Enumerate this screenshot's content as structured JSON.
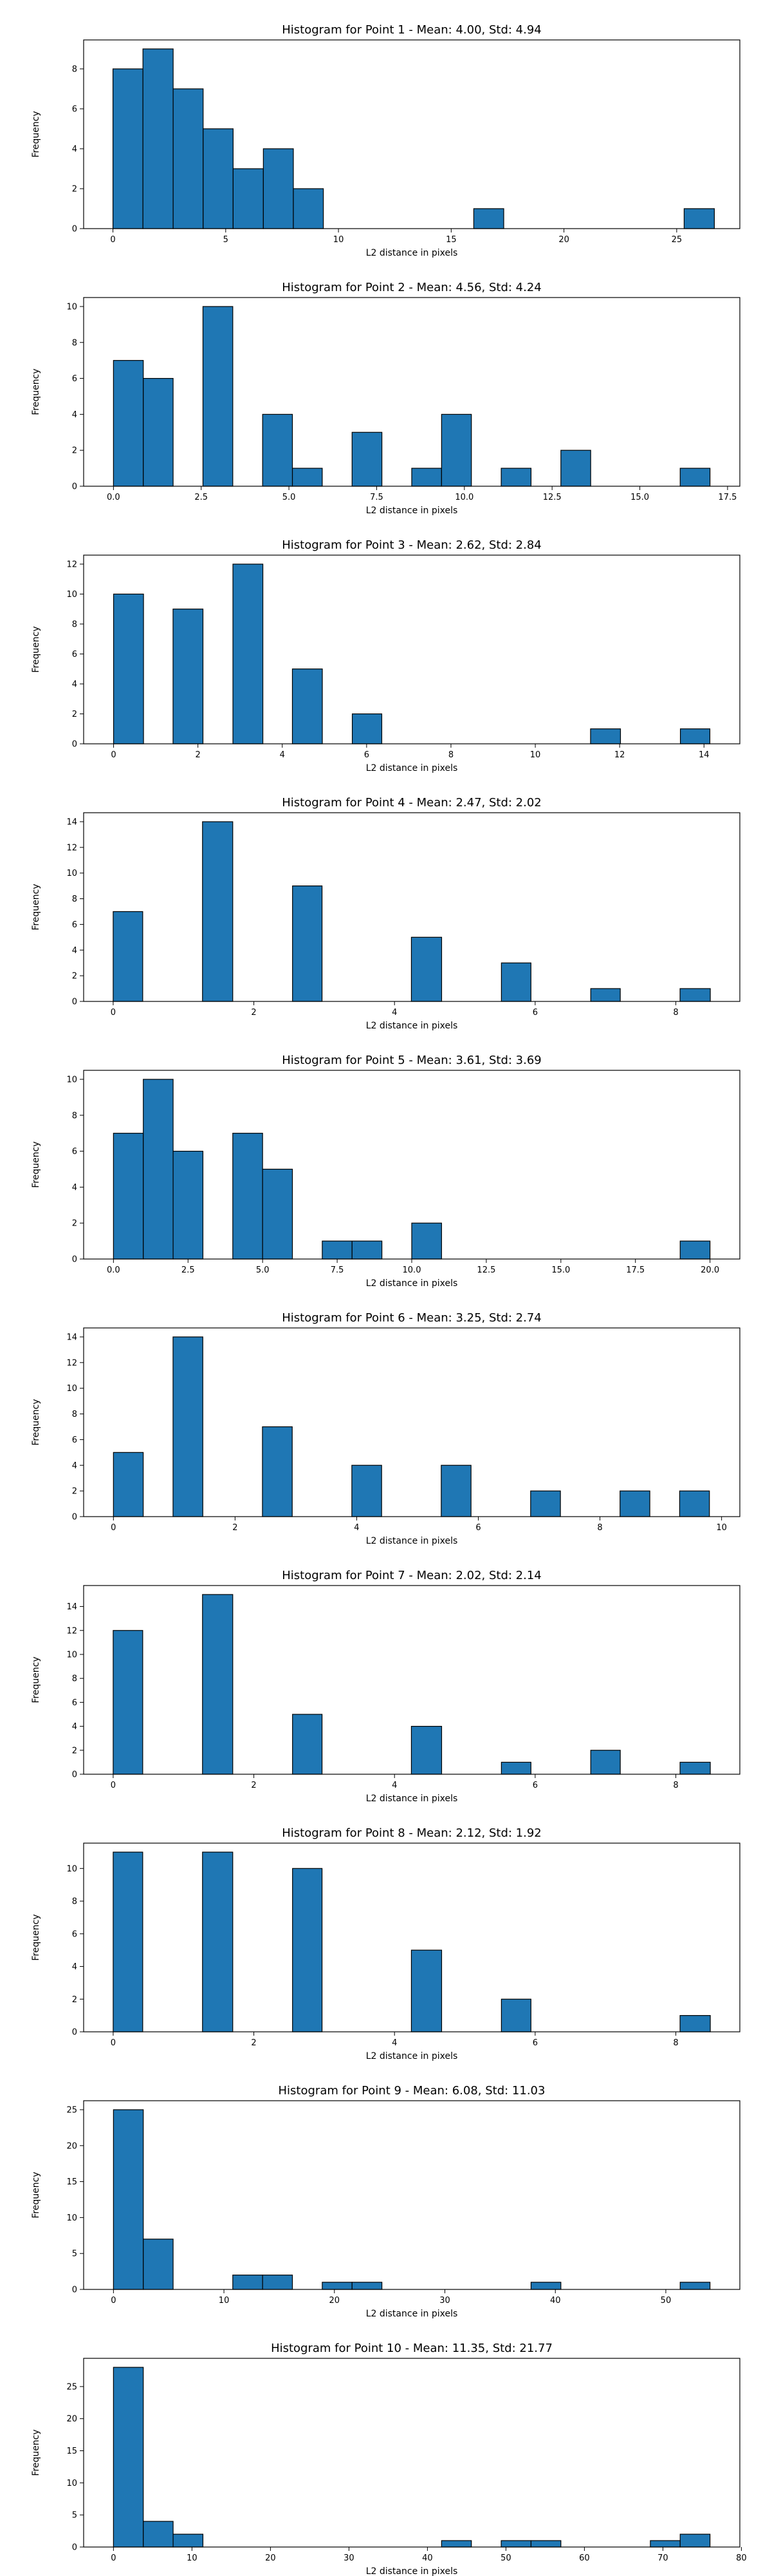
{
  "chart_data": [
    {
      "type": "bar",
      "title": "Histogram for Point 1 - Mean: 4.00, Std: 4.94",
      "xlabel": "L2 distance in pixels",
      "ylabel": "Frequency",
      "xlim": [
        -1.3,
        27.8
      ],
      "ylim": [
        0,
        9.45
      ],
      "xticks": [
        0,
        5,
        10,
        15,
        20,
        25
      ],
      "xtick_labels": [
        "0",
        "5",
        "10",
        "15",
        "20",
        "25"
      ],
      "yticks": [
        0,
        2,
        4,
        6,
        8
      ],
      "ytick_labels": [
        "0",
        "2",
        "4",
        "6",
        "8"
      ],
      "bin_edges": [
        0.0,
        1.33,
        2.67,
        4.0,
        5.33,
        6.67,
        8.0,
        9.33,
        10.67,
        12.0,
        13.33,
        14.67,
        16.0,
        17.33,
        18.67,
        20.0,
        21.33,
        22.67,
        24.0,
        25.33,
        26.67
      ],
      "values": [
        8,
        9,
        7,
        5,
        3,
        4,
        2,
        0,
        0,
        0,
        0,
        0,
        1,
        0,
        0,
        0,
        0,
        0,
        0,
        1
      ]
    },
    {
      "type": "bar",
      "title": "Histogram for Point 2 - Mean: 4.56, Std: 4.24",
      "xlabel": "L2 distance in pixels",
      "ylabel": "Frequency",
      "xlim": [
        -0.85,
        17.85
      ],
      "ylim": [
        0,
        10.5
      ],
      "xticks": [
        0,
        2.5,
        5,
        7.5,
        10,
        12.5,
        15,
        17.5
      ],
      "xtick_labels": [
        "0.0",
        "2.5",
        "5.0",
        "7.5",
        "10.0",
        "12.5",
        "15.0",
        "17.5"
      ],
      "yticks": [
        0,
        2,
        4,
        6,
        8,
        10
      ],
      "ytick_labels": [
        "0",
        "2",
        "4",
        "6",
        "8",
        "10"
      ],
      "bin_edges": [
        0.0,
        0.85,
        1.7,
        2.55,
        3.4,
        4.25,
        5.1,
        5.95,
        6.8,
        7.65,
        8.5,
        9.35,
        10.2,
        11.05,
        11.9,
        12.75,
        13.6,
        14.45,
        15.3,
        16.15,
        17.0
      ],
      "values": [
        7,
        6,
        0,
        10,
        0,
        4,
        1,
        0,
        3,
        0,
        1,
        4,
        0,
        1,
        0,
        2,
        0,
        0,
        0,
        1
      ]
    },
    {
      "type": "bar",
      "title": "Histogram for Point 3 - Mean: 2.62, Std: 2.84",
      "xlabel": "L2 distance in pixels",
      "ylabel": "Frequency",
      "xlim": [
        -0.71,
        14.85
      ],
      "ylim": [
        0,
        12.6
      ],
      "xticks": [
        0,
        2,
        4,
        6,
        8,
        10,
        12,
        14
      ],
      "xtick_labels": [
        "0",
        "2",
        "4",
        "6",
        "8",
        "10",
        "12",
        "14"
      ],
      "yticks": [
        0,
        2,
        4,
        6,
        8,
        10,
        12
      ],
      "ytick_labels": [
        "0",
        "2",
        "4",
        "6",
        "8",
        "10",
        "12"
      ],
      "bin_edges": [
        0.0,
        0.71,
        1.41,
        2.12,
        2.83,
        3.54,
        4.24,
        4.95,
        5.66,
        6.36,
        7.07,
        7.78,
        8.49,
        9.19,
        9.9,
        10.61,
        11.31,
        12.02,
        12.73,
        13.44,
        14.14
      ],
      "values": [
        10,
        0,
        9,
        0,
        12,
        0,
        5,
        0,
        2,
        0,
        0,
        0,
        0,
        0,
        0,
        0,
        1,
        0,
        0,
        1
      ]
    },
    {
      "type": "bar",
      "title": "Histogram for Point 4 - Mean: 2.47, Std: 2.02",
      "xlabel": "L2 distance in pixels",
      "ylabel": "Frequency",
      "xlim": [
        -0.42,
        8.91
      ],
      "ylim": [
        0,
        14.7
      ],
      "xticks": [
        0,
        2,
        4,
        6,
        8
      ],
      "xtick_labels": [
        "0",
        "2",
        "4",
        "6",
        "8"
      ],
      "yticks": [
        0,
        2,
        4,
        6,
        8,
        10,
        12,
        14
      ],
      "ytick_labels": [
        "0",
        "2",
        "4",
        "6",
        "8",
        "10",
        "12",
        "14"
      ],
      "bin_edges": [
        0.0,
        0.42,
        0.85,
        1.27,
        1.7,
        2.12,
        2.55,
        2.97,
        3.39,
        3.82,
        4.24,
        4.67,
        5.09,
        5.52,
        5.94,
        6.36,
        6.79,
        7.21,
        7.64,
        8.06,
        8.49
      ],
      "values": [
        7,
        0,
        0,
        14,
        0,
        0,
        9,
        0,
        0,
        0,
        5,
        0,
        0,
        3,
        0,
        0,
        1,
        0,
        0,
        1
      ]
    },
    {
      "type": "bar",
      "title": "Histogram for Point 5 - Mean: 3.61, Std: 3.69",
      "xlabel": "L2 distance in pixels",
      "ylabel": "Frequency",
      "xlim": [
        -1.0,
        21.0
      ],
      "ylim": [
        0,
        10.5
      ],
      "xticks": [
        0,
        2.5,
        5,
        7.5,
        10,
        12.5,
        15,
        17.5,
        20
      ],
      "xtick_labels": [
        "0.0",
        "2.5",
        "5.0",
        "7.5",
        "10.0",
        "12.5",
        "15.0",
        "17.5",
        "20.0"
      ],
      "yticks": [
        0,
        2,
        4,
        6,
        8,
        10
      ],
      "ytick_labels": [
        "0",
        "2",
        "4",
        "6",
        "8",
        "10"
      ],
      "bin_edges": [
        0.0,
        1.0,
        2.0,
        3.0,
        4.0,
        5.0,
        6.0,
        7.0,
        8.0,
        9.0,
        10.0,
        11.0,
        12.0,
        13.0,
        14.0,
        15.0,
        16.0,
        17.0,
        18.0,
        19.0,
        20.0
      ],
      "values": [
        7,
        10,
        6,
        0,
        7,
        5,
        0,
        1,
        1,
        0,
        2,
        0,
        0,
        0,
        0,
        0,
        0,
        0,
        0,
        1
      ]
    },
    {
      "type": "bar",
      "title": "Histogram for Point 6 - Mean: 3.25, Std: 2.74",
      "xlabel": "L2 distance in pixels",
      "ylabel": "Frequency",
      "xlim": [
        -0.49,
        10.3
      ],
      "ylim": [
        0,
        14.7
      ],
      "xticks": [
        0,
        2,
        4,
        6,
        8,
        10
      ],
      "xtick_labels": [
        "0",
        "2",
        "4",
        "6",
        "8",
        "10"
      ],
      "yticks": [
        0,
        2,
        4,
        6,
        8,
        10,
        12,
        14
      ],
      "ytick_labels": [
        "0",
        "2",
        "4",
        "6",
        "8",
        "10",
        "12",
        "14"
      ],
      "bin_edges": [
        0.0,
        0.49,
        0.98,
        1.47,
        1.96,
        2.45,
        2.94,
        3.43,
        3.92,
        4.41,
        4.9,
        5.39,
        5.88,
        6.37,
        6.86,
        7.35,
        7.84,
        8.33,
        8.82,
        9.31,
        9.8
      ],
      "values": [
        5,
        0,
        14,
        0,
        0,
        7,
        0,
        0,
        4,
        0,
        0,
        4,
        0,
        0,
        2,
        0,
        0,
        2,
        0,
        2
      ]
    },
    {
      "type": "bar",
      "title": "Histogram for Point 7 - Mean: 2.02, Std: 2.14",
      "xlabel": "L2 distance in pixels",
      "ylabel": "Frequency",
      "xlim": [
        -0.42,
        8.91
      ],
      "ylim": [
        0,
        15.75
      ],
      "xticks": [
        0,
        2,
        4,
        6,
        8
      ],
      "xtick_labels": [
        "0",
        "2",
        "4",
        "6",
        "8"
      ],
      "yticks": [
        0,
        2,
        4,
        6,
        8,
        10,
        12,
        14
      ],
      "ytick_labels": [
        "0",
        "2",
        "4",
        "6",
        "8",
        "10",
        "12",
        "14"
      ],
      "bin_edges": [
        0.0,
        0.42,
        0.85,
        1.27,
        1.7,
        2.12,
        2.55,
        2.97,
        3.39,
        3.82,
        4.24,
        4.67,
        5.09,
        5.52,
        5.94,
        6.36,
        6.79,
        7.21,
        7.64,
        8.06,
        8.49
      ],
      "values": [
        12,
        0,
        0,
        15,
        0,
        0,
        5,
        0,
        0,
        0,
        4,
        0,
        0,
        1,
        0,
        0,
        2,
        0,
        0,
        1
      ]
    },
    {
      "type": "bar",
      "title": "Histogram for Point 8 - Mean: 2.12, Std: 1.92",
      "xlabel": "L2 distance in pixels",
      "ylabel": "Frequency",
      "xlim": [
        -0.42,
        8.91
      ],
      "ylim": [
        0,
        11.55
      ],
      "xticks": [
        0,
        2,
        4,
        6,
        8
      ],
      "xtick_labels": [
        "0",
        "2",
        "4",
        "6",
        "8"
      ],
      "yticks": [
        0,
        2,
        4,
        6,
        8,
        10
      ],
      "ytick_labels": [
        "0",
        "2",
        "4",
        "6",
        "8",
        "10"
      ],
      "bin_edges": [
        0.0,
        0.42,
        0.85,
        1.27,
        1.7,
        2.12,
        2.55,
        2.97,
        3.39,
        3.82,
        4.24,
        4.67,
        5.09,
        5.52,
        5.94,
        6.36,
        6.79,
        7.21,
        7.64,
        8.06,
        8.49
      ],
      "values": [
        11,
        0,
        0,
        11,
        0,
        0,
        10,
        0,
        0,
        0,
        5,
        0,
        0,
        2,
        0,
        0,
        0,
        0,
        0,
        1
      ]
    },
    {
      "type": "bar",
      "title": "Histogram for Point 9 - Mean: 6.08, Std: 11.03",
      "xlabel": "L2 distance in pixels",
      "ylabel": "Frequency",
      "xlim": [
        -2.7,
        56.7
      ],
      "ylim": [
        0,
        26.25
      ],
      "xticks": [
        0,
        10,
        20,
        30,
        40,
        50
      ],
      "xtick_labels": [
        "0",
        "10",
        "20",
        "30",
        "40",
        "50"
      ],
      "yticks": [
        0,
        5,
        10,
        15,
        20,
        25
      ],
      "ytick_labels": [
        "0",
        "5",
        "10",
        "15",
        "20",
        "25"
      ],
      "bin_edges": [
        0.0,
        2.7,
        5.4,
        8.1,
        10.8,
        13.5,
        16.2,
        18.9,
        21.6,
        24.3,
        27.0,
        29.7,
        32.4,
        35.1,
        37.8,
        40.5,
        43.2,
        45.9,
        48.6,
        51.3,
        54.0
      ],
      "values": [
        25,
        7,
        0,
        0,
        2,
        2,
        0,
        1,
        1,
        0,
        0,
        0,
        0,
        0,
        1,
        0,
        0,
        0,
        0,
        1
      ]
    },
    {
      "type": "bar",
      "title": "Histogram for Point 10 - Mean: 11.35, Std: 21.77",
      "xlabel": "L2 distance in pixels",
      "ylabel": "Frequency",
      "xlim": [
        -3.8,
        79.8
      ],
      "ylim": [
        0,
        29.4
      ],
      "xticks": [
        0,
        10,
        20,
        30,
        40,
        50,
        60,
        70,
        80
      ],
      "xtick_labels": [
        "0",
        "10",
        "20",
        "30",
        "40",
        "50",
        "60",
        "70",
        "80"
      ],
      "yticks": [
        0,
        5,
        10,
        15,
        20,
        25
      ],
      "ytick_labels": [
        "0",
        "5",
        "10",
        "15",
        "20",
        "25"
      ],
      "bin_edges": [
        0.0,
        3.8,
        7.6,
        11.4,
        15.2,
        19.0,
        22.8,
        26.6,
        30.4,
        34.2,
        38.0,
        41.8,
        45.6,
        49.4,
        53.2,
        57.0,
        60.8,
        64.6,
        68.4,
        72.2,
        76.0
      ],
      "values": [
        28,
        4,
        2,
        0,
        0,
        0,
        0,
        0,
        0,
        0,
        0,
        1,
        0,
        1,
        1,
        0,
        0,
        0,
        1,
        2
      ]
    }
  ],
  "colors": {
    "bar_fill": "#1f77b4",
    "bar_edge": "#000000",
    "axes": "#000000",
    "background": "#ffffff"
  }
}
